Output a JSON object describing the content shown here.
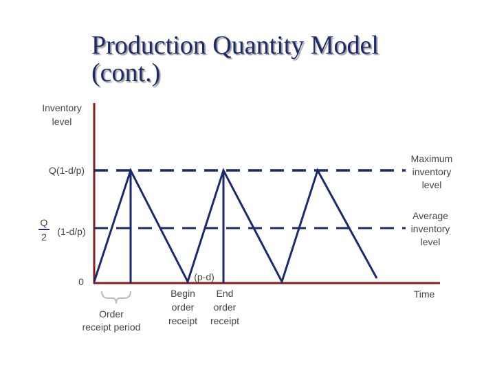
{
  "title": [
    "Production Quantity Model",
    "(cont.)"
  ],
  "y_axis_label": [
    "Inventory",
    "level"
  ],
  "max_level_label": "Q(1-d/p)",
  "avg_level_label": {
    "numerator": "Q",
    "denominator": "2",
    "factor": "(1-d/p)"
  },
  "origin_label": "0",
  "x_axis_label": "Time",
  "max_inventory_label": [
    "Maximum",
    "inventory",
    "level"
  ],
  "avg_inventory_label": [
    "Average",
    "inventory",
    "level"
  ],
  "slope_label": "(p-d)",
  "begin_label": [
    "Begin",
    "order",
    "receipt"
  ],
  "end_label": [
    "End",
    "order",
    "receipt"
  ],
  "period_label": [
    "Order",
    "receipt period"
  ]
}
